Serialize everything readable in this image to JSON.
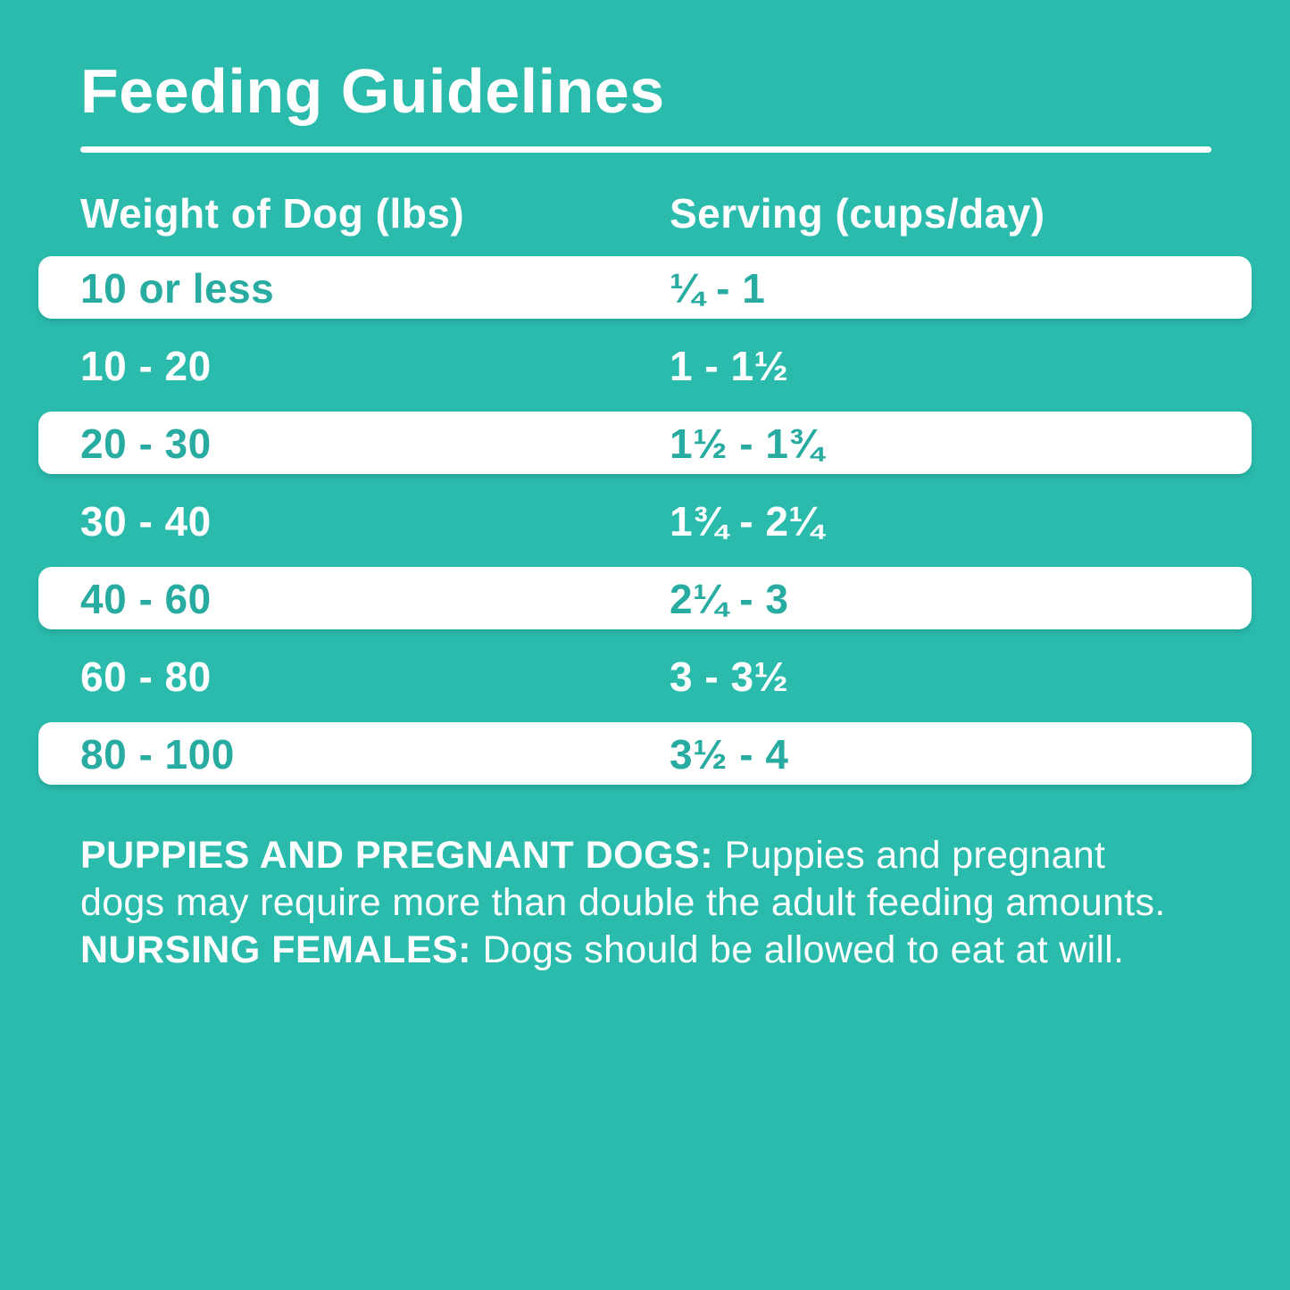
{
  "panel": {
    "title": "Feeding Guidelines",
    "colors": {
      "background": "#2BBBAD",
      "row_bar": "#FFFFFF",
      "text_on_background": "#FFFFFF",
      "text_on_bar": "#28ABA0"
    }
  },
  "table": {
    "headers": {
      "weight": "Weight of Dog (lbs)",
      "serving": "Serving (cups/day)"
    },
    "rows": [
      {
        "weight": "10 or less",
        "serving": "¼ - 1",
        "highlighted": true
      },
      {
        "weight": "10 - 20",
        "serving": "1 - 1½",
        "highlighted": false
      },
      {
        "weight": "20 - 30",
        "serving": "1½ - 1¾",
        "highlighted": true
      },
      {
        "weight": "30 - 40",
        "serving": "1¾ - 2¼",
        "highlighted": false
      },
      {
        "weight": "40 - 60",
        "serving": "2¼ - 3",
        "highlighted": true
      },
      {
        "weight": "60 - 80",
        "serving": "3 - 3½",
        "highlighted": false
      },
      {
        "weight": "80 - 100",
        "serving": "3½ - 4",
        "highlighted": true
      }
    ]
  },
  "note": {
    "segments": [
      {
        "text": "PUPPIES AND PREGNANT DOGS: ",
        "bold": true
      },
      {
        "text": "Puppies and pregnant dogs may require more than double the adult feeding amounts. ",
        "bold": false
      },
      {
        "text": "NURSING FEMALES: ",
        "bold": true
      },
      {
        "text": "Dogs should be allowed to eat at will.",
        "bold": false
      }
    ]
  }
}
